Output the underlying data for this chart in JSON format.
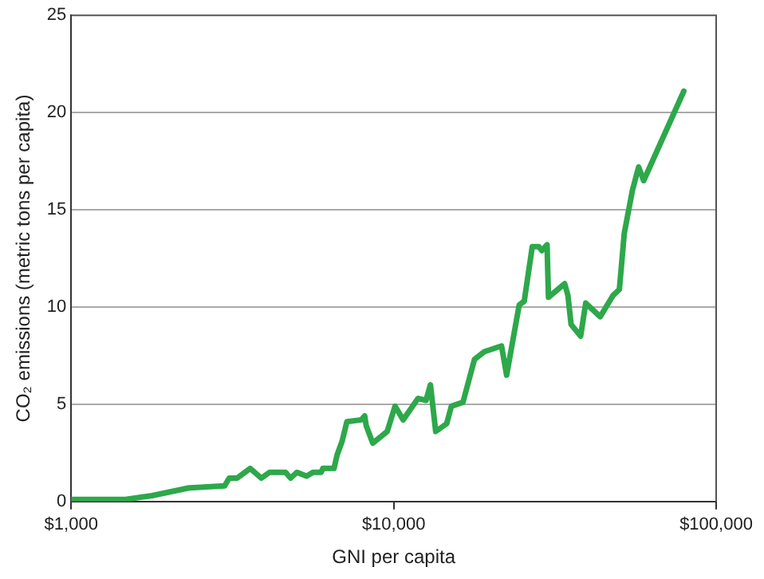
{
  "chart_data": {
    "type": "line",
    "xlabel": "GNI per capita",
    "ylabel": "CO₂ emissions (metric tons per capita)",
    "x": [
      1000,
      1300,
      1460,
      1780,
      2320,
      2990,
      3090,
      3270,
      3590,
      3890,
      4120,
      4620,
      4790,
      5010,
      5370,
      5620,
      5960,
      6030,
      6530,
      6680,
      6920,
      7160,
      7940,
      8130,
      8220,
      8610,
      9550,
      10100,
      10700,
      11900,
      12600,
      13000,
      13500,
      14600,
      15100,
      16400,
      17800,
      19100,
      21600,
      22400,
      24500,
      25400,
      26900,
      28200,
      28800,
      29900,
      30200,
      33900,
      34700,
      35500,
      38000,
      39400,
      43700,
      47900,
      50100,
      51900,
      55000,
      57500,
      59600,
      79400
    ],
    "series": [
      {
        "color": "#2da84a",
        "values": [
          0.1,
          0.1,
          0.1,
          0.3,
          0.7,
          0.8,
          1.2,
          1.2,
          1.7,
          1.2,
          1.5,
          1.5,
          1.2,
          1.5,
          1.3,
          1.5,
          1.5,
          1.7,
          1.7,
          2.4,
          3.1,
          4.1,
          4.2,
          4.4,
          3.9,
          3.0,
          3.6,
          4.9,
          4.2,
          5.3,
          5.2,
          6.0,
          3.6,
          4.0,
          4.9,
          5.1,
          7.3,
          7.7,
          8.0,
          6.5,
          10.1,
          10.3,
          13.1,
          13.1,
          12.9,
          13.2,
          10.5,
          11.2,
          10.6,
          9.1,
          8.5,
          10.2,
          9.5,
          10.6,
          10.9,
          13.8,
          16.0,
          17.2,
          16.5,
          21.1
        ]
      }
    ],
    "log": "x",
    "xlim": [
      1000,
      100000
    ],
    "xticks": [
      {
        "value": 1000,
        "label": "$1,000"
      },
      {
        "value": 10000,
        "label": "$10,000"
      },
      {
        "value": 100000,
        "label": "$100,000"
      }
    ],
    "ylim": [
      0,
      25
    ],
    "yticks": [
      0,
      5,
      10,
      15,
      20,
      25
    ],
    "grid": "y",
    "legend": false,
    "marker": "none",
    "line_style": "solid"
  }
}
